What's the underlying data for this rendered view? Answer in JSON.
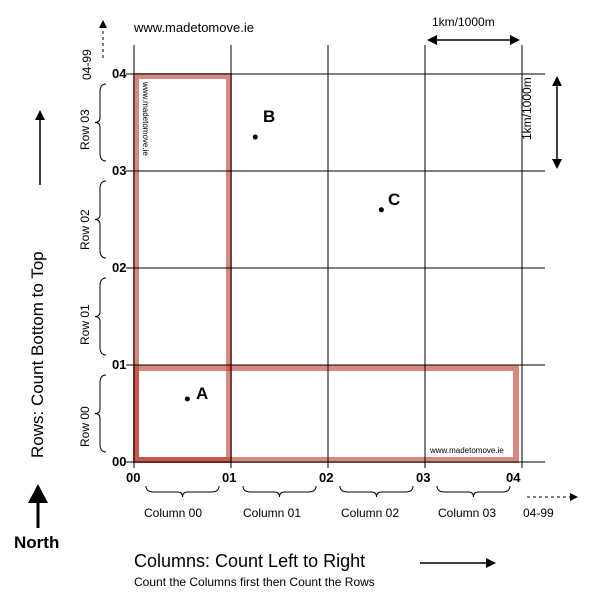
{
  "source_url": "www.madetomove.ie",
  "scale": {
    "horizontal": "1km/1000m",
    "vertical": "1km/1000m"
  },
  "grid": {
    "x_ticks": [
      "00",
      "01",
      "02",
      "03",
      "04"
    ],
    "y_ticks": [
      "00",
      "01",
      "02",
      "03",
      "04"
    ],
    "x_overflow_label": "04-99",
    "y_overflow_label": "04-99"
  },
  "columns": [
    "Column 00",
    "Column 01",
    "Column 02",
    "Column 03"
  ],
  "rows": [
    "Row 00",
    "Row 01",
    "Row 02",
    "Row 03"
  ],
  "points": [
    {
      "label": "A",
      "x": 0.55,
      "y": 0.65
    },
    {
      "label": "B",
      "x": 1.25,
      "y": 3.35
    },
    {
      "label": "C",
      "x": 2.55,
      "y": 2.6
    }
  ],
  "highlight": {
    "column": "00",
    "row": "00",
    "color": "#c0392b"
  },
  "watermark_vertical": "www.madetomove.ie",
  "watermark_horizontal": "www.madetomove.ie",
  "rows_title": "Rows: Count Bottom to Top",
  "north_label": "North",
  "columns_title": "Columns: Count Left to Right",
  "instruction": "Count the Columns first then Count the Rows"
}
